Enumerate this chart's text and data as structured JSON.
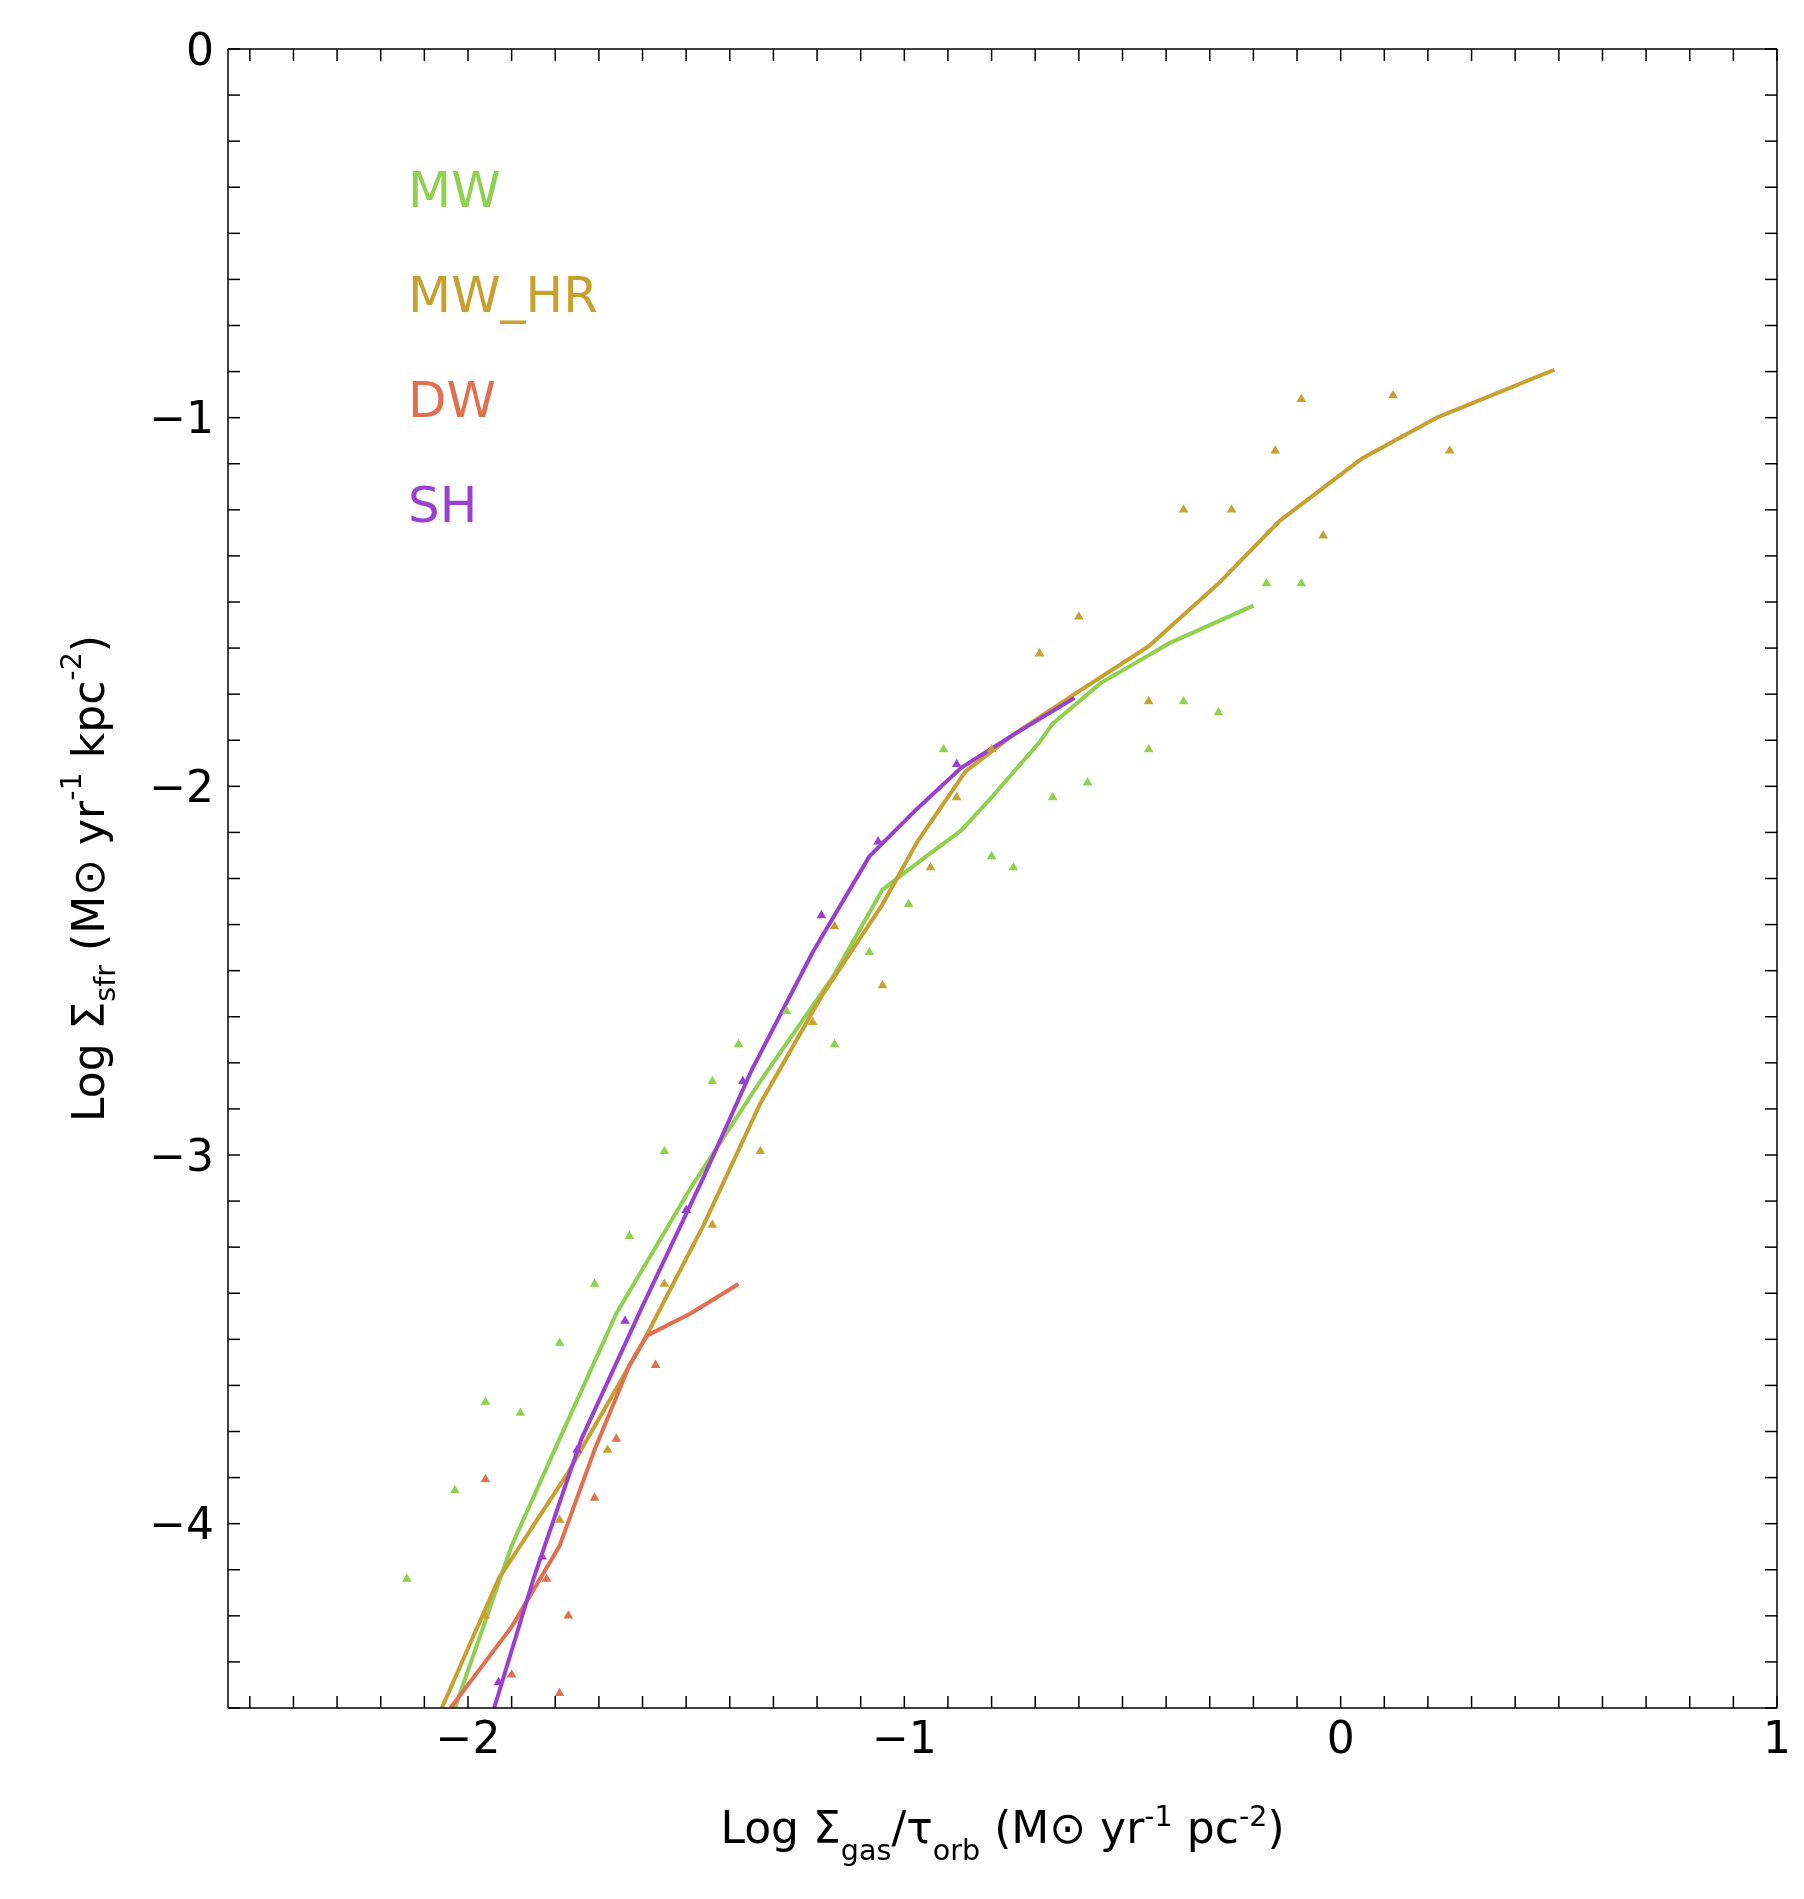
{
  "chart_data": {
    "type": "scatter",
    "xlabel": "Log Σ$_{gas}$/τ$_{orb}$   (M⊙ yr$^{-1}$ pc$^{-2}$)",
    "ylabel": "Log Σ$_{sfr}$   (M⊙ yr$^{-1}$ kpc$^{-2}$)",
    "xlim": [
      -2.55,
      1
    ],
    "ylim": [
      -4.5,
      0
    ],
    "xticks": [
      {
        "value": -2.5,
        "label": null
      },
      {
        "value": -2.4,
        "label": null
      },
      {
        "value": -2.3,
        "label": null
      },
      {
        "value": -2.2,
        "label": null
      },
      {
        "value": -2.1,
        "label": null
      },
      {
        "value": -2,
        "label": "−2"
      },
      {
        "value": -1.9,
        "label": null
      },
      {
        "value": -1.8,
        "label": null
      },
      {
        "value": -1.7,
        "label": null
      },
      {
        "value": -1.6,
        "label": null
      },
      {
        "value": -1.5,
        "label": null
      },
      {
        "value": -1.4,
        "label": null
      },
      {
        "value": -1.3,
        "label": null
      },
      {
        "value": -1.2,
        "label": null
      },
      {
        "value": -1.1,
        "label": null
      },
      {
        "value": -1,
        "label": "−1"
      },
      {
        "value": -0.9,
        "label": null
      },
      {
        "value": -0.8,
        "label": null
      },
      {
        "value": -0.7,
        "label": null
      },
      {
        "value": -0.6,
        "label": null
      },
      {
        "value": -0.5,
        "label": null
      },
      {
        "value": -0.4,
        "label": null
      },
      {
        "value": -0.3,
        "label": null
      },
      {
        "value": -0.2,
        "label": null
      },
      {
        "value": -0.1,
        "label": null
      },
      0,
      {
        "value": 0.1,
        "label": null
      },
      {
        "value": 0.2,
        "label": null
      },
      {
        "value": 0.3,
        "label": null
      },
      {
        "value": 0.4,
        "label": null
      },
      {
        "value": 0.5,
        "label": null
      },
      {
        "value": 0.6,
        "label": null
      },
      {
        "value": 0.7,
        "label": null
      },
      {
        "value": 0.8,
        "label": null
      },
      {
        "value": 0.9,
        "label": null
      },
      1
    ],
    "yticks": [
      {
        "value": -4.5,
        "label": null
      },
      {
        "value": -4.375,
        "label": null
      },
      {
        "value": -4.25,
        "label": null
      },
      {
        "value": -4.125,
        "label": null
      },
      {
        "value": -4,
        "label": "−4"
      },
      {
        "value": -3.875,
        "label": null
      },
      {
        "value": -3.75,
        "label": null
      },
      {
        "value": -3.625,
        "label": null
      },
      {
        "value": -3.5,
        "label": null
      },
      {
        "value": -3.375,
        "label": null
      },
      {
        "value": -3.25,
        "label": null
      },
      {
        "value": -3.125,
        "label": null
      },
      {
        "value": -3,
        "label": "−3"
      },
      {
        "value": -2.875,
        "label": null
      },
      {
        "value": -2.75,
        "label": null
      },
      {
        "value": -2.625,
        "label": null
      },
      {
        "value": -2.5,
        "label": null
      },
      {
        "value": -2.375,
        "label": null
      },
      {
        "value": -2.25,
        "label": null
      },
      {
        "value": -2.125,
        "label": null
      },
      {
        "value": -2,
        "label": "−2"
      },
      {
        "value": -1.875,
        "label": null
      },
      {
        "value": -1.75,
        "label": null
      },
      {
        "value": -1.625,
        "label": null
      },
      {
        "value": -1.5,
        "label": null
      },
      {
        "value": -1.375,
        "label": null
      },
      {
        "value": -1.25,
        "label": null
      },
      {
        "value": -1.125,
        "label": null
      },
      {
        "value": -1,
        "label": "−1"
      },
      {
        "value": -0.875,
        "label": null
      },
      {
        "value": -0.75,
        "label": null
      },
      {
        "value": -0.625,
        "label": null
      },
      {
        "value": -0.5,
        "label": null
      },
      {
        "value": -0.375,
        "label": null
      },
      {
        "value": -0.25,
        "label": null
      },
      {
        "value": -0.125,
        "label": null
      },
      0
    ],
    "legend": "top left",
    "series": [
      {
        "type": "scatter",
        "marker": "triangle",
        "color": "#8fd14f",
        "x": [
          -2.14,
          -2.03,
          -1.96,
          -1.88,
          -1.79,
          -1.71,
          -1.63,
          -1.55,
          -1.44,
          -1.38,
          -1.27,
          -1.16,
          -1.08,
          -0.99,
          -0.91,
          -0.8,
          -0.75,
          -0.66,
          -0.58,
          -0.44,
          -0.36,
          -0.28,
          -0.17,
          -0.09
        ],
        "values": [
          -4.15,
          -3.91,
          -3.67,
          -3.7,
          -3.51,
          -3.35,
          -3.22,
          -2.99,
          -2.8,
          -2.7,
          -2.61,
          -2.7,
          -2.45,
          -2.32,
          -1.9,
          -2.19,
          -2.22,
          -2.03,
          -1.99,
          -1.9,
          -1.77,
          -1.8,
          -1.45,
          -1.45
        ]
      },
      {
        "type": "scatter",
        "marker": "triangle",
        "color": "#c8a030",
        "x": [
          -1.96,
          -1.79,
          -1.68,
          -1.55,
          -1.44,
          -1.33,
          -1.21,
          -1.16,
          -1.05,
          -0.94,
          -0.88,
          -0.8,
          -0.69,
          -0.6,
          -0.44,
          -0.36,
          -0.25,
          -0.15,
          -0.09,
          -0.04,
          0.12,
          0.25
        ],
        "values": [
          -4.25,
          -3.99,
          -3.8,
          -3.35,
          -3.19,
          -2.99,
          -2.64,
          -2.38,
          -2.54,
          -2.22,
          -2.03,
          -1.9,
          -1.64,
          -1.54,
          -1.77,
          -1.25,
          -1.25,
          -1.09,
          -0.95,
          -1.32,
          -0.94,
          -1.09
        ]
      },
      {
        "type": "scatter",
        "marker": "triangle",
        "color": "#e07050",
        "x": [
          -1.96,
          -1.9,
          -1.82,
          -1.77,
          -1.71,
          -1.66,
          -1.57,
          -1.79
        ],
        "values": [
          -3.88,
          -4.41,
          -4.15,
          -4.25,
          -3.93,
          -3.77,
          -3.57,
          -4.46
        ]
      },
      {
        "type": "scatter",
        "marker": "triangle",
        "color": "#9b3fd0",
        "x": [
          -1.93,
          -1.83,
          -1.75,
          -1.64,
          -1.5,
          -1.37,
          -1.19,
          -1.06,
          -0.88
        ],
        "values": [
          -4.43,
          -4.09,
          -3.8,
          -3.45,
          -3.15,
          -2.8,
          -2.35,
          -2.15,
          -1.94
        ]
      },
      {
        "type": "line",
        "name": "MW",
        "marker": "none",
        "color": "#8fd14f",
        "x": [
          -2.03,
          -1.9,
          -1.79,
          -1.66,
          -1.49,
          -1.33,
          -1.16,
          -1.05,
          -0.95,
          -0.87,
          -0.8,
          -0.69,
          -0.66,
          -0.55,
          -0.39,
          -0.2
        ],
        "values": [
          -4.5,
          -4.06,
          -3.77,
          -3.43,
          -3.09,
          -2.8,
          -2.51,
          -2.28,
          -2.19,
          -2.12,
          -2.03,
          -1.88,
          -1.83,
          -1.72,
          -1.61,
          -1.51
        ]
      },
      {
        "type": "line",
        "name": "MW_HR",
        "marker": "none",
        "color": "#c8a030",
        "x": [
          -2.06,
          -1.93,
          -1.77,
          -1.6,
          -1.46,
          -1.33,
          -1.19,
          -1.05,
          -0.97,
          -0.86,
          -0.75,
          -0.61,
          -0.44,
          -0.28,
          -0.14,
          0.05,
          0.22,
          0.49
        ],
        "values": [
          -4.5,
          -4.15,
          -3.86,
          -3.51,
          -3.19,
          -2.86,
          -2.57,
          -2.32,
          -2.15,
          -1.96,
          -1.86,
          -1.75,
          -1.62,
          -1.45,
          -1.28,
          -1.11,
          -1,
          -0.87
        ]
      },
      {
        "type": "line",
        "name": "DW",
        "marker": "none",
        "color": "#e07050",
        "x": [
          -2.04,
          -1.9,
          -1.79,
          -1.71,
          -1.63,
          -1.59,
          -1.49,
          -1.38
        ],
        "values": [
          -4.5,
          -4.28,
          -4.06,
          -3.8,
          -3.57,
          -3.49,
          -3.43,
          -3.35
        ]
      },
      {
        "type": "line",
        "name": "SH",
        "marker": "none",
        "color": "#9b3fd0",
        "x": [
          -1.94,
          -1.85,
          -1.74,
          -1.6,
          -1.46,
          -1.35,
          -1.21,
          -1.08,
          -0.97,
          -0.87,
          -0.75,
          -0.61
        ],
        "values": [
          -4.5,
          -4.15,
          -3.77,
          -3.41,
          -3.06,
          -2.77,
          -2.45,
          -2.19,
          -2.06,
          -1.95,
          -1.86,
          -1.76
        ]
      }
    ]
  }
}
